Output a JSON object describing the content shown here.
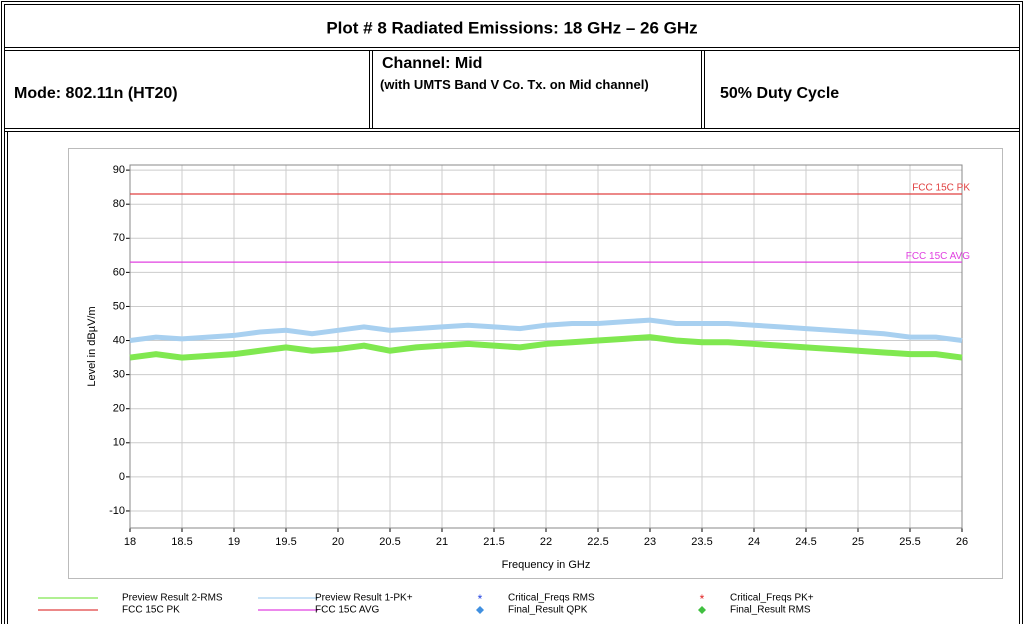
{
  "header": {
    "title": "Plot # 8 Radiated Emissions: 18 GHz – 26 GHz",
    "mode": "Mode: 802.11n (HT20)",
    "channel": "Channel: Mid",
    "channel_note": "(with UMTS Band V Co. Tx. on Mid channel)",
    "duty": "50% Duty Cycle"
  },
  "chart_data": {
    "type": "line",
    "xlabel": "Frequency in GHz",
    "ylabel": "Level in dBµV/m",
    "xlim": [
      18,
      26
    ],
    "ylim": [
      -15,
      91.5
    ],
    "xticks": [
      18,
      18.5,
      19,
      19.5,
      20,
      20.5,
      21,
      21.5,
      22,
      22.5,
      23,
      23.5,
      24,
      24.5,
      25,
      25.5,
      26
    ],
    "yticks": [
      -10,
      0,
      10,
      20,
      30,
      40,
      50,
      60,
      70,
      80,
      90
    ],
    "grid": true,
    "series": [
      {
        "name": "Preview Result 2-RMS",
        "color": "#80e850",
        "x": [
          18,
          18.25,
          18.5,
          18.75,
          19,
          19.25,
          19.5,
          19.75,
          20,
          20.25,
          20.5,
          20.75,
          21,
          21.25,
          21.5,
          21.75,
          22,
          22.25,
          22.5,
          22.75,
          23,
          23.25,
          23.5,
          23.75,
          24,
          24.25,
          24.5,
          24.75,
          25,
          25.25,
          25.5,
          25.75,
          26
        ],
        "values": [
          35,
          36,
          35,
          35.5,
          36,
          37,
          38,
          37,
          37.5,
          38.5,
          37,
          38,
          38.5,
          39,
          38.5,
          38,
          39,
          39.5,
          40,
          40.5,
          41,
          40,
          39.5,
          39.5,
          39,
          38.5,
          38,
          37.5,
          37,
          36.5,
          36,
          36,
          35
        ]
      },
      {
        "name": "Preview Result 1-PK+",
        "color": "#a8d0f0",
        "x": [
          18,
          18.25,
          18.5,
          18.75,
          19,
          19.25,
          19.5,
          19.75,
          20,
          20.25,
          20.5,
          20.75,
          21,
          21.25,
          21.5,
          21.75,
          22,
          22.25,
          22.5,
          22.75,
          23,
          23.25,
          23.5,
          23.75,
          24,
          24.25,
          24.5,
          24.75,
          25,
          25.25,
          25.5,
          25.75,
          26
        ],
        "values": [
          40,
          41,
          40.5,
          41,
          41.5,
          42.5,
          43,
          42,
          43,
          44,
          43,
          43.5,
          44,
          44.5,
          44,
          43.5,
          44.5,
          45,
          45,
          45.5,
          46,
          45,
          45,
          45,
          44.5,
          44,
          43.5,
          43,
          42.5,
          42,
          41,
          41,
          40
        ]
      },
      {
        "name": "FCC 15C PK",
        "color": "#e04040",
        "x": [
          18,
          26
        ],
        "values": [
          83,
          83
        ]
      },
      {
        "name": "FCC 15C AVG",
        "color": "#e040e0",
        "x": [
          18,
          26
        ],
        "values": [
          63,
          63
        ]
      }
    ],
    "legend_markers": [
      {
        "name": "Critical_Freqs RMS",
        "color": "#2040e0",
        "marker": "asterisk"
      },
      {
        "name": "Critical_Freqs PK+",
        "color": "#e02020",
        "marker": "asterisk"
      },
      {
        "name": "Final_Result QPK",
        "color": "#4090e0",
        "marker": "diamond"
      },
      {
        "name": "Final_Result RMS",
        "color": "#40c040",
        "marker": "diamond"
      }
    ]
  }
}
